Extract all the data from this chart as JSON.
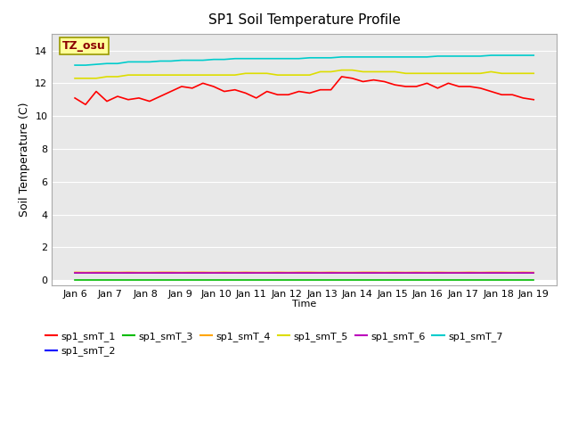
{
  "title": "SP1 Soil Temperature Profile",
  "xlabel": "Time",
  "ylabel": "Soil Temperature (C)",
  "annotation_text": "TZ_osu",
  "annotation_color": "#8B0000",
  "annotation_bg": "#FFFF99",
  "plot_bg_color": "#E8E8E8",
  "below_zero_bg": "#FFFFFF",
  "ylim": [
    -0.3,
    15
  ],
  "yticks": [
    0,
    2,
    4,
    6,
    8,
    10,
    12,
    14
  ],
  "series_order": [
    "sp1_smT_1",
    "sp1_smT_2",
    "sp1_smT_3",
    "sp1_smT_4",
    "sp1_smT_5",
    "sp1_smT_6",
    "sp1_smT_7"
  ],
  "series": {
    "sp1_smT_1": {
      "color": "#FF0000",
      "linewidth": 1.2,
      "data": [
        11.1,
        10.7,
        11.5,
        10.9,
        11.2,
        11.0,
        11.1,
        10.9,
        11.2,
        11.5,
        11.8,
        11.7,
        12.0,
        11.8,
        11.5,
        11.6,
        11.4,
        11.1,
        11.5,
        11.3,
        11.3,
        11.5,
        11.4,
        11.6,
        11.6,
        12.4,
        12.3,
        12.1,
        12.2,
        12.1,
        11.9,
        11.8,
        11.8,
        12.0,
        11.7,
        12.0,
        11.8,
        11.8,
        11.7,
        11.5,
        11.3,
        11.3,
        11.1,
        11.0
      ]
    },
    "sp1_smT_2": {
      "color": "#0000FF",
      "linewidth": 1.2,
      "data": [
        0.45,
        0.45,
        0.45,
        0.45,
        0.45,
        0.45,
        0.45,
        0.45,
        0.45,
        0.45,
        0.45,
        0.45,
        0.45,
        0.45,
        0.45,
        0.45,
        0.45,
        0.45,
        0.45,
        0.45,
        0.45,
        0.45,
        0.45,
        0.45,
        0.45,
        0.45,
        0.45,
        0.45,
        0.45,
        0.45,
        0.45,
        0.45,
        0.45,
        0.45,
        0.45,
        0.45,
        0.45,
        0.45,
        0.45,
        0.45,
        0.45,
        0.45,
        0.45,
        0.45
      ]
    },
    "sp1_smT_3": {
      "color": "#00BB00",
      "linewidth": 1.2,
      "data": [
        0.02,
        0.02,
        0.02,
        0.02,
        0.02,
        0.02,
        0.02,
        0.02,
        0.02,
        0.02,
        0.02,
        0.02,
        0.02,
        0.02,
        0.02,
        0.02,
        0.02,
        0.02,
        0.02,
        0.02,
        0.02,
        0.02,
        0.02,
        0.02,
        0.02,
        0.02,
        0.02,
        0.02,
        0.02,
        0.02,
        0.02,
        0.02,
        0.02,
        0.02,
        0.02,
        0.02,
        0.02,
        0.02,
        0.02,
        0.02,
        0.02,
        0.02,
        0.02,
        0.02
      ]
    },
    "sp1_smT_4": {
      "color": "#FFA500",
      "linewidth": 1.2,
      "data": [
        0.48,
        0.47,
        0.48,
        0.48,
        0.47,
        0.48,
        0.47,
        0.47,
        0.48,
        0.48,
        0.47,
        0.48,
        0.48,
        0.47,
        0.48,
        0.47,
        0.48,
        0.47,
        0.47,
        0.48,
        0.47,
        0.48,
        0.48,
        0.47,
        0.48,
        0.47,
        0.47,
        0.48,
        0.48,
        0.47,
        0.48,
        0.47,
        0.48,
        0.47,
        0.48,
        0.47,
        0.47,
        0.48,
        0.47,
        0.48,
        0.48,
        0.47,
        0.48,
        0.47
      ]
    },
    "sp1_smT_5": {
      "color": "#DDDD00",
      "linewidth": 1.2,
      "data": [
        12.3,
        12.3,
        12.3,
        12.4,
        12.4,
        12.5,
        12.5,
        12.5,
        12.5,
        12.5,
        12.5,
        12.5,
        12.5,
        12.5,
        12.5,
        12.5,
        12.6,
        12.6,
        12.6,
        12.5,
        12.5,
        12.5,
        12.5,
        12.7,
        12.7,
        12.8,
        12.8,
        12.7,
        12.7,
        12.7,
        12.7,
        12.6,
        12.6,
        12.6,
        12.6,
        12.6,
        12.6,
        12.6,
        12.6,
        12.7,
        12.6,
        12.6,
        12.6,
        12.6
      ]
    },
    "sp1_smT_6": {
      "color": "#BB00BB",
      "linewidth": 1.2,
      "data": [
        0.42,
        0.42,
        0.42,
        0.42,
        0.42,
        0.42,
        0.42,
        0.42,
        0.42,
        0.42,
        0.42,
        0.42,
        0.42,
        0.42,
        0.42,
        0.42,
        0.42,
        0.42,
        0.42,
        0.42,
        0.42,
        0.42,
        0.42,
        0.42,
        0.42,
        0.42,
        0.42,
        0.42,
        0.42,
        0.42,
        0.42,
        0.42,
        0.42,
        0.42,
        0.42,
        0.42,
        0.42,
        0.42,
        0.42,
        0.42,
        0.42,
        0.42,
        0.42,
        0.42
      ]
    },
    "sp1_smT_7": {
      "color": "#00CCCC",
      "linewidth": 1.2,
      "data": [
        13.1,
        13.1,
        13.15,
        13.2,
        13.2,
        13.3,
        13.3,
        13.3,
        13.35,
        13.35,
        13.4,
        13.4,
        13.4,
        13.45,
        13.45,
        13.5,
        13.5,
        13.5,
        13.5,
        13.5,
        13.5,
        13.5,
        13.55,
        13.55,
        13.55,
        13.6,
        13.6,
        13.6,
        13.6,
        13.6,
        13.6,
        13.6,
        13.6,
        13.6,
        13.65,
        13.65,
        13.65,
        13.65,
        13.65,
        13.7,
        13.7,
        13.7,
        13.7,
        13.7
      ]
    }
  },
  "xtick_labels": [
    "Jan 6",
    "Jan 7",
    "Jan 8",
    "Jan 9",
    "Jan 10",
    "Jan 11",
    "Jan 12",
    "Jan 13",
    "Jan 14",
    "Jan 15",
    "Jan 16",
    "Jan 17",
    "Jan 18",
    "Jan 19"
  ],
  "n_points": 44,
  "figsize": [
    6.4,
    4.8
  ],
  "dpi": 100
}
